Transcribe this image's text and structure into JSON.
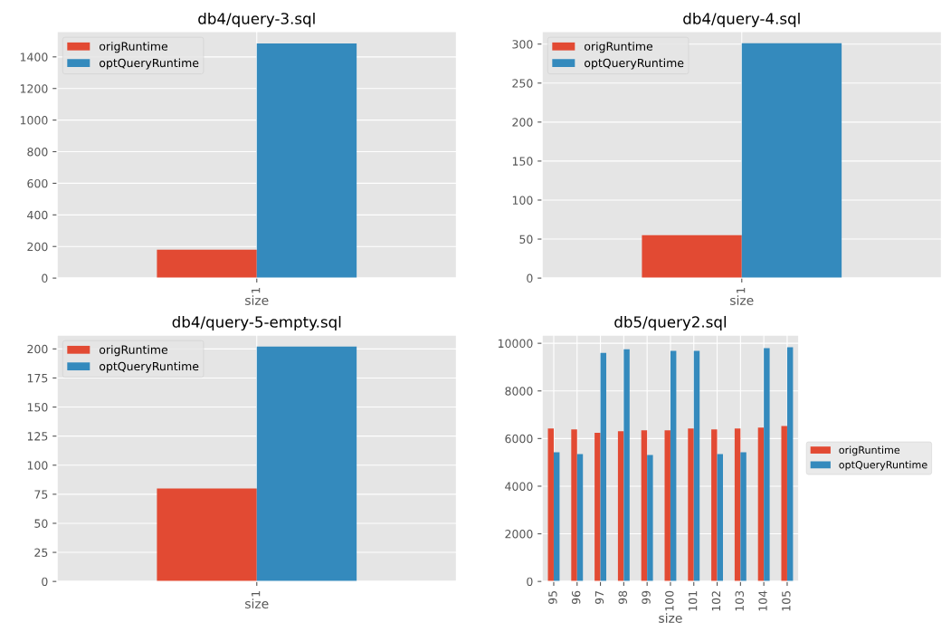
{
  "chart_data": [
    {
      "type": "bar",
      "title": "db4/query-3.sql",
      "xlabel": "size",
      "categories": [
        "1"
      ],
      "series": [
        {
          "name": "origRuntime",
          "color": "#e24a33",
          "values": [
            180
          ]
        },
        {
          "name": "optQueryRuntime",
          "color": "#348abd",
          "values": [
            1485
          ]
        }
      ],
      "ylim": [
        0,
        1560
      ],
      "yticks": [
        0,
        200,
        400,
        600,
        800,
        1000,
        1200,
        1400
      ],
      "grid": true,
      "legend": "top left"
    },
    {
      "type": "bar",
      "title": "db4/query-4.sql",
      "xlabel": "size",
      "categories": [
        "1"
      ],
      "series": [
        {
          "name": "origRuntime",
          "color": "#e24a33",
          "values": [
            55
          ]
        },
        {
          "name": "optQueryRuntime",
          "color": "#348abd",
          "values": [
            301
          ]
        }
      ],
      "ylim": [
        0,
        316
      ],
      "yticks": [
        0,
        50,
        100,
        150,
        200,
        250,
        300
      ],
      "grid": true,
      "legend": "top left"
    },
    {
      "type": "bar",
      "title": "db4/query-5-empty.sql",
      "xlabel": "size",
      "categories": [
        "1"
      ],
      "series": [
        {
          "name": "origRuntime",
          "color": "#e24a33",
          "values": [
            80
          ]
        },
        {
          "name": "optQueryRuntime",
          "color": "#348abd",
          "values": [
            202
          ]
        }
      ],
      "ylim": [
        0,
        212
      ],
      "yticks": [
        0,
        25,
        50,
        75,
        100,
        125,
        150,
        175,
        200
      ],
      "grid": true,
      "legend": "top left"
    },
    {
      "type": "bar",
      "title": "db5/query2.sql",
      "xlabel": "size",
      "categories": [
        "95",
        "96",
        "97",
        "98",
        "99",
        "100",
        "101",
        "102",
        "103",
        "104",
        "105"
      ],
      "series": [
        {
          "name": "origRuntime",
          "color": "#e24a33",
          "values": [
            6420,
            6380,
            6240,
            6310,
            6350,
            6350,
            6420,
            6380,
            6420,
            6460,
            6530
          ]
        },
        {
          "name": "optQueryRuntime",
          "color": "#348abd",
          "values": [
            5420,
            5350,
            9600,
            9750,
            5310,
            9680,
            9680,
            5350,
            5420,
            9800,
            9830
          ]
        }
      ],
      "ylim": [
        0,
        10350
      ],
      "yticks": [
        0,
        2000,
        4000,
        6000,
        8000,
        10000
      ],
      "grid": true,
      "legend": "right"
    }
  ]
}
